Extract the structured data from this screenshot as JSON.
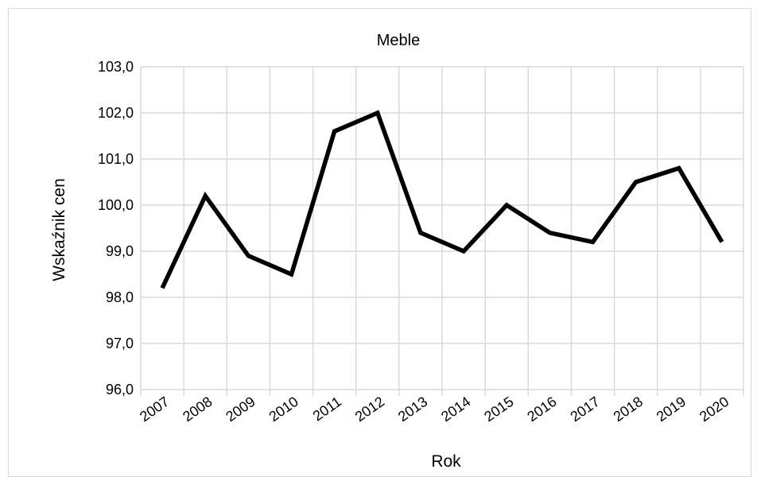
{
  "chart_data": {
    "type": "line",
    "title": "Meble",
    "xlabel": "Rok",
    "ylabel": "Wskaźnik cen",
    "categories": [
      "2007",
      "2008",
      "2009",
      "2010",
      "2011",
      "2012",
      "2013",
      "2014",
      "2015",
      "2016",
      "2017",
      "2018",
      "2019",
      "2020"
    ],
    "series": [
      {
        "values": [
          98.2,
          100.2,
          98.9,
          98.5,
          101.6,
          102.0,
          99.4,
          99.0,
          100.0,
          99.4,
          99.2,
          100.5,
          100.8,
          99.2
        ]
      }
    ],
    "ylim": [
      96.0,
      103.0
    ],
    "ytick_step": 1.0,
    "ytick_labels": [
      "96,0",
      "97,0",
      "98,0",
      "99,0",
      "100,0",
      "101,0",
      "102,0",
      "103,0"
    ],
    "grid": true,
    "line_color": "#000000",
    "grid_color": "#d9d9d9"
  }
}
